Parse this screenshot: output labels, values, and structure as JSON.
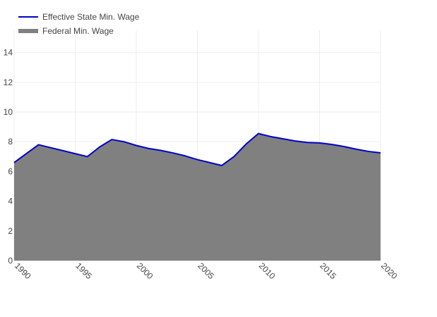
{
  "chart_data": {
    "type": "area",
    "title": "",
    "xlabel": "",
    "ylabel": "",
    "xlim": [
      1990,
      2020
    ],
    "ylim": [
      0,
      15.5
    ],
    "x_ticks": [
      1990,
      1995,
      2000,
      2005,
      2010,
      2015,
      2020
    ],
    "y_ticks": [
      0,
      2,
      4,
      6,
      8,
      10,
      12,
      14
    ],
    "grid": true,
    "legend_position": "top-left",
    "x": [
      1990,
      1991,
      1992,
      1993,
      1994,
      1995,
      1996,
      1997,
      1998,
      1999,
      2000,
      2001,
      2002,
      2003,
      2004,
      2005,
      2006,
      2007,
      2008,
      2009,
      2010,
      2011,
      2012,
      2013,
      2014,
      2015,
      2016,
      2017,
      2018,
      2019,
      2020
    ],
    "series": [
      {
        "name": "Effective State Min. Wage",
        "style": "line",
        "color": "#0000cc",
        "values": [
          6.6,
          7.2,
          7.8,
          7.6,
          7.4,
          7.2,
          7.0,
          7.65,
          8.15,
          8.0,
          7.75,
          7.55,
          7.42,
          7.25,
          7.05,
          6.8,
          6.6,
          6.4,
          7.0,
          7.85,
          8.55,
          8.35,
          8.2,
          8.05,
          7.95,
          7.92,
          7.82,
          7.68,
          7.5,
          7.35,
          7.25
        ]
      },
      {
        "name": "Federal Min. Wage",
        "style": "area",
        "color": "#808080",
        "values": [
          6.6,
          7.2,
          7.8,
          7.6,
          7.4,
          7.2,
          7.0,
          7.65,
          8.15,
          8.0,
          7.75,
          7.55,
          7.42,
          7.25,
          7.05,
          6.8,
          6.6,
          6.4,
          7.0,
          7.85,
          8.55,
          8.35,
          8.2,
          8.05,
          7.95,
          7.92,
          7.82,
          7.68,
          7.5,
          7.35,
          7.25
        ]
      }
    ]
  }
}
